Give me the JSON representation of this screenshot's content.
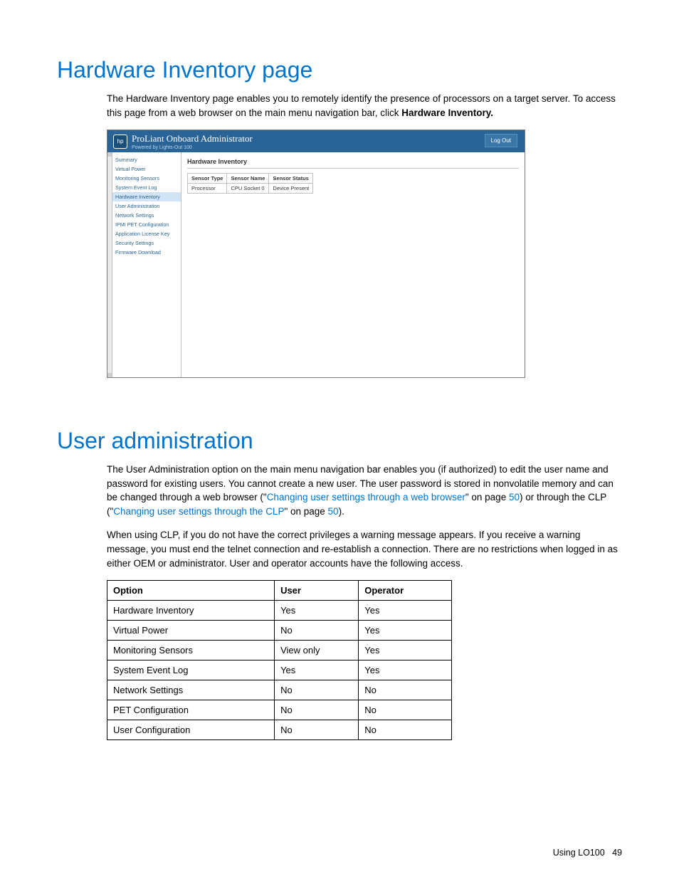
{
  "colors": {
    "heading": "#0073cf",
    "link": "#0073cf",
    "text": "#000000",
    "table_border": "#000000",
    "shot_header_bg": "#2a6496",
    "shot_border": "#7a7a7a",
    "shot_cell_border": "#c0c0c0",
    "shot_selected_bg": "#d0e4f5"
  },
  "section1": {
    "title": "Hardware Inventory page",
    "para_pre": "The Hardware Inventory page enables you to remotely identify the presence of processors on a target server. To access this page from a web browser on the main menu navigation bar, click ",
    "para_bold": "Hardware Inventory."
  },
  "screenshot": {
    "app_name": "ProLiant Onboard Administrator",
    "app_subtitle": "Powered by Lights-Out 100",
    "logout": "Log Out",
    "nav": [
      "Summary",
      "Virtual Power",
      "Monitoring Sensors",
      "System Event Log",
      "Hardware Inventory",
      "User Administration",
      "Network Settings",
      "IPMI PET Configuration",
      "Application License Key",
      "Security Settings",
      "Firmware Download"
    ],
    "selected_index": 4,
    "main_heading": "Hardware Inventory",
    "table_headers": [
      "Sensor Type",
      "Sensor Name",
      "Sensor Status"
    ],
    "table_row": [
      "Processor",
      "CPU Socket 0",
      "Device Present"
    ]
  },
  "section2": {
    "title": "User administration",
    "p1_a": "The User Administration option on the main menu navigation bar enables you (if authorized) to edit the user name and password for existing users. You cannot create a new user. The user password is stored in nonvolatile memory and can be changed through a web browser (\"",
    "p1_link1": "Changing user settings through a web browser",
    "p1_b": "\" on page ",
    "p1_page1": "50",
    "p1_c": ") or through the CLP (\"",
    "p1_link2": "Changing user settings through the CLP",
    "p1_d": "\" on page ",
    "p1_page2": "50",
    "p1_e": ").",
    "p2": "When using CLP, if you do not have the correct privileges a warning message appears. If you receive a warning message, you must end the telnet connection and re-establish a connection. There are no restrictions when logged in as either OEM or administrator. User and operator accounts have the following access."
  },
  "access_table": {
    "headers": [
      "Option",
      "User",
      "Operator"
    ],
    "rows": [
      [
        "Hardware Inventory",
        "Yes",
        "Yes"
      ],
      [
        "Virtual Power",
        "No",
        "Yes"
      ],
      [
        "Monitoring Sensors",
        "View only",
        "Yes"
      ],
      [
        "System Event Log",
        "Yes",
        "Yes"
      ],
      [
        "Network Settings",
        "No",
        "No"
      ],
      [
        "PET Configuration",
        "No",
        "No"
      ],
      [
        "User Configuration",
        "No",
        "No"
      ]
    ]
  },
  "footer": {
    "label": "Using LO100",
    "page": "49"
  }
}
